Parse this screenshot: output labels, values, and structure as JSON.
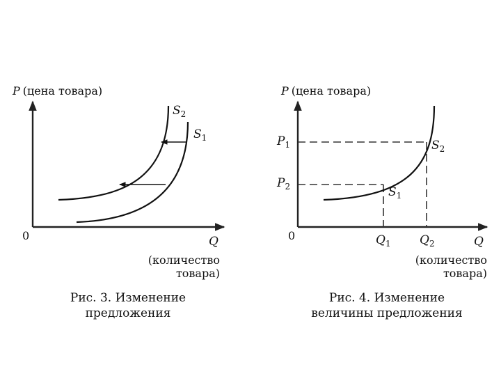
{
  "figure3": {
    "y_axis_letter": "P",
    "y_axis_text": "(цена товара)",
    "x_axis_letter": "Q",
    "x_axis_text_line1": "(количество",
    "x_axis_text_line2": "товара)",
    "origin": "0",
    "curve_s2": {
      "letter": "S",
      "sub": "2"
    },
    "curve_s1": {
      "letter": "S",
      "sub": "1"
    },
    "caption_line1": "Рис. 3. Изменение",
    "caption_line2": "предложения"
  },
  "figure4": {
    "y_axis_letter": "P",
    "y_axis_text": "(цена товара)",
    "x_axis_letter": "Q",
    "x_axis_text_line1": "(количество",
    "x_axis_text_line2": "товара)",
    "origin": "0",
    "price_p1": {
      "letter": "P",
      "sub": "1"
    },
    "price_p2": {
      "letter": "P",
      "sub": "2"
    },
    "qty_q1": {
      "letter": "Q",
      "sub": "1"
    },
    "qty_q2": {
      "letter": "Q",
      "sub": "2"
    },
    "point_s2": {
      "letter": "S",
      "sub": "2"
    },
    "point_s1": {
      "letter": "S",
      "sub": "1"
    },
    "caption_line1": "Рис. 4. Изменение",
    "caption_line2": "величины предложения"
  }
}
